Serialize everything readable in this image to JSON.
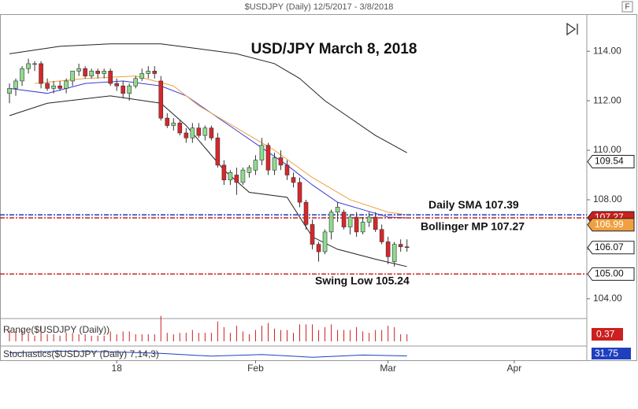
{
  "chart_data": {
    "type": "candlestick",
    "title": "$USDJPY (Daily)  12/5/2017 - 3/8/2018",
    "headline": "USD/JPY March 8, 2018",
    "button_label": "F",
    "x": [
      0,
      1,
      2,
      3,
      4,
      5,
      6,
      7,
      8,
      9,
      10,
      11,
      12,
      13,
      14,
      15,
      16,
      17,
      18,
      19,
      20,
      21,
      22,
      23,
      24,
      25,
      26,
      27,
      28,
      29,
      30,
      31,
      32,
      33,
      34,
      35,
      36,
      37,
      38,
      39,
      40,
      41,
      42,
      43,
      44,
      45,
      46,
      47,
      48,
      49,
      50,
      51,
      52,
      53,
      54,
      55,
      56,
      57,
      58,
      59,
      60,
      61,
      62,
      63
    ],
    "open": [
      112.3,
      112.5,
      112.8,
      113.3,
      113.5,
      113.5,
      112.7,
      112.5,
      112.6,
      112.5,
      112.8,
      113.2,
      113.3,
      113.0,
      113.2,
      113.1,
      113.2,
      112.7,
      112.6,
      112.3,
      112.6,
      112.9,
      113.1,
      113.2,
      112.8,
      111.3,
      111.0,
      111.1,
      110.7,
      110.5,
      110.9,
      110.6,
      110.9,
      110.5,
      109.4,
      108.8,
      109.0,
      108.7,
      109.1,
      109.2,
      109.6,
      110.2,
      109.2,
      109.7,
      109.4,
      108.9,
      108.7,
      107.9,
      107.0,
      106.2,
      105.9,
      106.7,
      107.5,
      107.5,
      106.9,
      107.3,
      106.7,
      107.1,
      107.3,
      106.8,
      106.3,
      105.5,
      106.2,
      106.1
    ],
    "high": [
      112.7,
      112.9,
      113.4,
      113.7,
      113.6,
      113.6,
      112.9,
      112.8,
      112.8,
      112.9,
      113.2,
      113.5,
      113.4,
      113.3,
      113.3,
      113.3,
      113.3,
      112.9,
      112.8,
      112.7,
      113.0,
      113.3,
      113.4,
      113.4,
      113.0,
      111.5,
      111.3,
      111.2,
      110.9,
      111.1,
      111.1,
      111.0,
      111.0,
      110.7,
      109.6,
      109.2,
      109.3,
      109.3,
      109.4,
      109.8,
      110.5,
      110.3,
      109.9,
      110.0,
      109.6,
      109.1,
      108.9,
      108.0,
      107.2,
      106.3,
      106.8,
      107.6,
      107.9,
      107.6,
      107.4,
      107.5,
      107.3,
      107.5,
      107.5,
      107.0,
      106.5,
      106.3,
      106.4,
      106.4
    ],
    "low": [
      111.9,
      112.2,
      112.6,
      113.1,
      113.2,
      112.5,
      112.4,
      112.3,
      112.4,
      112.3,
      112.6,
      113.0,
      112.9,
      112.9,
      112.9,
      112.9,
      112.6,
      112.4,
      112.1,
      112.0,
      112.5,
      112.8,
      112.9,
      112.9,
      111.2,
      110.9,
      110.8,
      110.6,
      110.3,
      110.3,
      110.5,
      110.4,
      110.4,
      109.3,
      108.6,
      108.6,
      108.2,
      108.6,
      108.9,
      109.0,
      109.4,
      109.0,
      109.0,
      109.2,
      108.8,
      108.5,
      107.7,
      106.8,
      106.0,
      105.5,
      105.8,
      106.4,
      107.1,
      106.8,
      106.6,
      106.5,
      106.6,
      106.9,
      106.7,
      106.2,
      105.4,
      105.3,
      105.9,
      105.9
    ],
    "close": [
      112.5,
      112.8,
      113.3,
      113.5,
      113.5,
      112.7,
      112.5,
      112.6,
      112.5,
      112.8,
      113.2,
      113.3,
      113.0,
      113.2,
      113.1,
      113.2,
      112.7,
      112.6,
      112.3,
      112.6,
      112.9,
      113.1,
      113.2,
      113.1,
      111.3,
      111.0,
      111.1,
      110.7,
      110.5,
      110.9,
      110.6,
      110.9,
      110.5,
      109.4,
      108.8,
      109.1,
      108.7,
      109.2,
      109.3,
      109.6,
      110.2,
      109.2,
      109.7,
      109.4,
      109.0,
      108.7,
      107.9,
      107.0,
      106.2,
      105.9,
      106.7,
      107.5,
      107.7,
      106.9,
      107.3,
      106.7,
      107.1,
      107.3,
      106.8,
      106.3,
      105.7,
      106.2,
      106.1,
      106.07
    ],
    "up_color": "#8fdc8f",
    "down_color": "#d9262a",
    "indicators": [
      {
        "name": "upper",
        "color": "#222222",
        "x": [
          0,
          8,
          16,
          24,
          30,
          36,
          42,
          46,
          50,
          54,
          58,
          63
        ],
        "values": [
          113.9,
          114.2,
          114.3,
          114.3,
          114.1,
          113.9,
          113.5,
          112.9,
          112.0,
          111.3,
          110.6,
          109.9
        ]
      },
      {
        "name": "lower",
        "color": "#222222",
        "x": [
          0,
          6,
          16,
          24,
          28,
          34,
          38,
          44,
          48,
          52,
          58,
          63
        ],
        "values": [
          111.4,
          111.9,
          112.2,
          111.9,
          111.0,
          109.2,
          108.3,
          108.1,
          106.5,
          106.0,
          105.6,
          105.3
        ]
      },
      {
        "name": "mid",
        "color": "#3b3bd6",
        "x": [
          0,
          6,
          12,
          18,
          24,
          28,
          32,
          36,
          40,
          44,
          48,
          52,
          56,
          60,
          63
        ],
        "values": [
          112.5,
          112.3,
          112.7,
          112.8,
          112.6,
          112.2,
          111.5,
          110.8,
          110.1,
          109.4,
          108.6,
          107.9,
          107.6,
          107.3,
          107.27
        ]
      },
      {
        "name": "sma",
        "color": "#f0a040",
        "x": [
          4,
          12,
          20,
          26,
          30,
          36,
          42,
          48,
          54,
          60,
          63
        ],
        "values": [
          112.7,
          112.9,
          113.0,
          112.6,
          111.8,
          110.9,
          110.0,
          108.9,
          108.0,
          107.5,
          107.39
        ]
      }
    ],
    "levels": [
      {
        "value": 107.39,
        "color": "#1f3fbf"
      },
      {
        "value": 107.27,
        "color": "#cc1f1f"
      },
      {
        "value": 105.0,
        "color": "#cc1f1f"
      }
    ],
    "annotations": [
      {
        "text": "Daily SMA 107.39",
        "value": 107.39
      },
      {
        "text": "Bollinger MP 107.27",
        "value": 107.27
      },
      {
        "text": "Swing Low 105.24",
        "value": 105.24
      }
    ],
    "price_labels": [
      {
        "value": 109.54,
        "label": "109.54",
        "color": "#ffffff"
      },
      {
        "value": 107.27,
        "label": "107.27",
        "color": "#cc1f1f"
      },
      {
        "value": 106.99,
        "label": "106.99",
        "color": "#f0a040"
      },
      {
        "value": 106.07,
        "label": "106.07",
        "color": "#ffffff"
      },
      {
        "value": 105,
        "label": "105.00",
        "color": "#ffffff"
      }
    ],
    "ylim": [
      103.2,
      115.5
    ],
    "yticks": [
      {
        "value": 104,
        "label": "104.00"
      },
      {
        "value": 106,
        "label": "106.00"
      },
      {
        "value": 108,
        "label": "108.00"
      },
      {
        "value": 110,
        "label": "110.00"
      },
      {
        "value": 112,
        "label": "112.00"
      },
      {
        "value": 114,
        "label": "114.00"
      }
    ],
    "xlim": [
      -1.5,
      91.5
    ],
    "xticks": [
      {
        "value": 17,
        "label": "18"
      },
      {
        "value": 39,
        "label": "Feb"
      },
      {
        "value": 60,
        "label": "Mar"
      },
      {
        "value": 80,
        "label": "Apr"
      }
    ],
    "range_panel": {
      "title": "Range($USDJPY (Daily))",
      "last": 0.37,
      "color": "#cc1f1f"
    },
    "stoch_panel": {
      "title": "Stochastics($USDJPY (Daily) 7,14,3)",
      "last": 31.75,
      "color": "#1f3fbf",
      "x": [
        0,
        8,
        16,
        24,
        32,
        40,
        48,
        56,
        63
      ],
      "values": [
        60,
        75,
        70,
        55,
        30,
        45,
        20,
        40,
        31.75
      ],
      "ylim": [
        0,
        100
      ]
    }
  }
}
